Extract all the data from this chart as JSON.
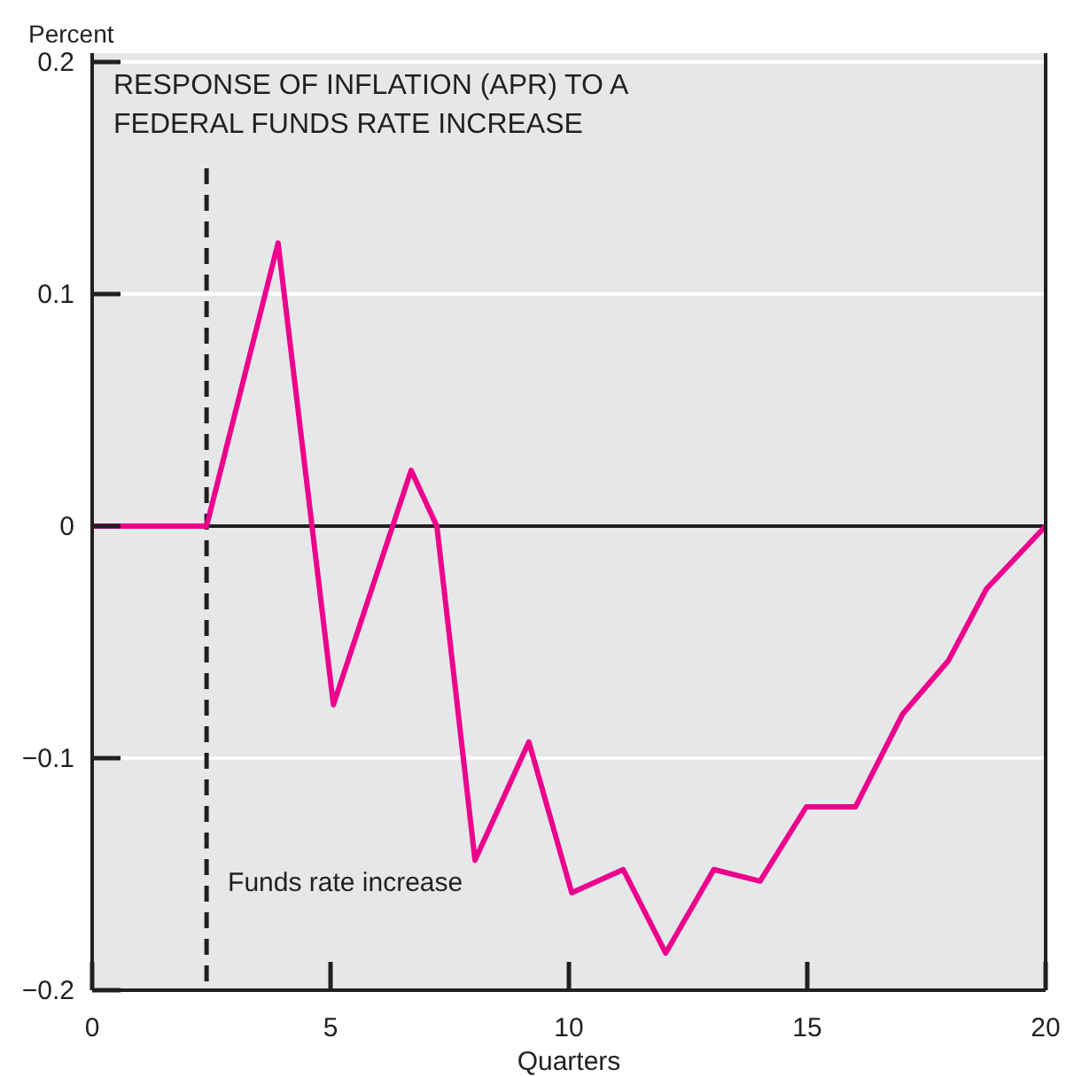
{
  "chart_data": {
    "type": "line",
    "title": "RESPONSE OF INFLATION (APR) TO A\nFEDERAL FUNDS RATE INCREASE",
    "ylabel": "Percent",
    "xlabel": "Quarters",
    "x": [
      0,
      2.4,
      3.9,
      5.06,
      6.69,
      7.23,
      8.03,
      9.16,
      10.06,
      11.14,
      12.03,
      13.04,
      14.01,
      14.98,
      16.01,
      17.0,
      17.96,
      18.76,
      20
    ],
    "series": [
      {
        "color": "#ec008c",
        "values": [
          0,
          0,
          0.122,
          -0.077,
          0.024,
          0,
          -0.144,
          -0.093,
          -0.158,
          -0.148,
          -0.184,
          -0.148,
          -0.153,
          -0.121,
          -0.121,
          -0.081,
          -0.058,
          -0.027,
          0
        ]
      }
    ],
    "xlim": [
      0,
      20
    ],
    "xticks": [
      0,
      5,
      10,
      15,
      20
    ],
    "ylim": [
      -0.2,
      0.2
    ],
    "yticks": [
      0.2,
      0.1,
      0,
      {
        "value": -0.1,
        "label": "−0.1"
      },
      {
        "value": -0.2,
        "label": "−0.2"
      }
    ],
    "grid": "y",
    "marker": "none",
    "line_style": "solid",
    "ref_lines": [
      {
        "axis": "y",
        "value": 0,
        "color": "#231f20",
        "line_style": "solid"
      },
      {
        "axis": "x",
        "value": 2.4,
        "label": "Funds rate increase",
        "color": "#231f20",
        "line_style": "dashed"
      }
    ]
  }
}
